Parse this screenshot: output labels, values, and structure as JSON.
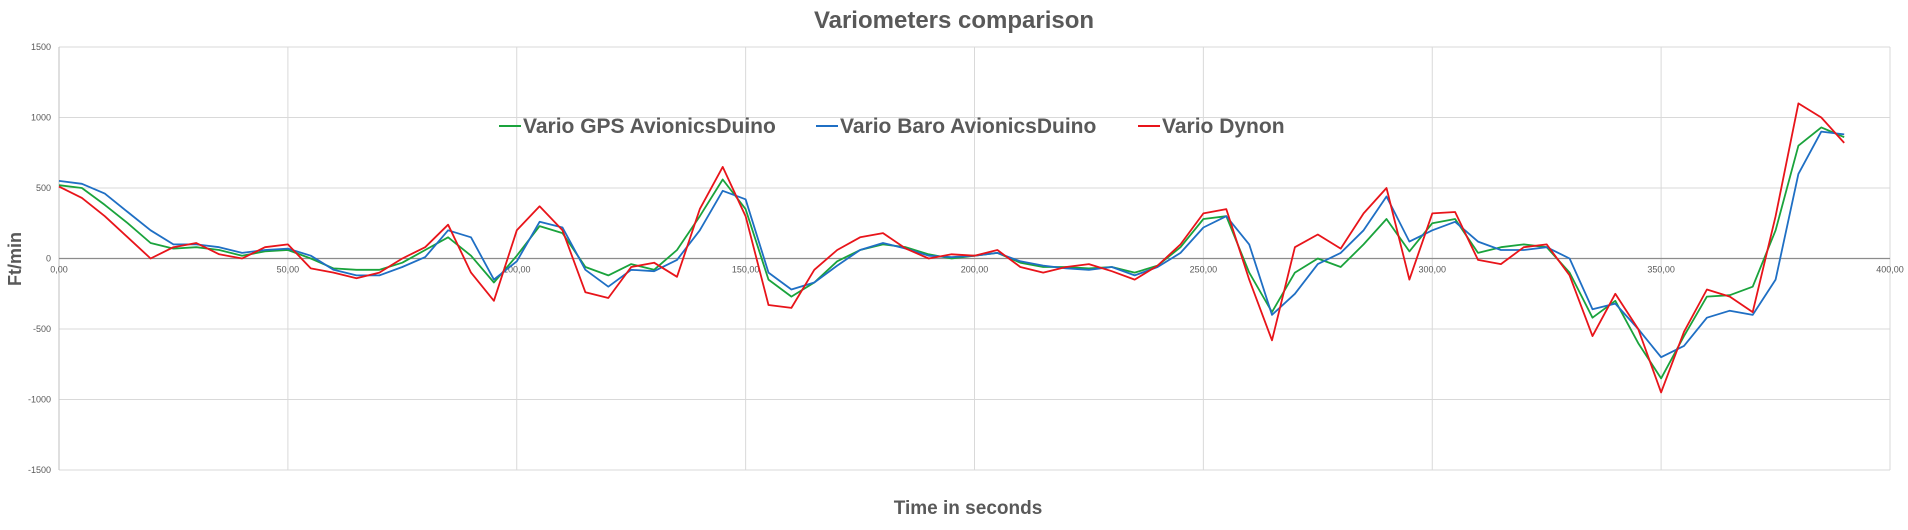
{
  "chart_data": {
    "type": "line",
    "title": "Variometers comparison",
    "xlabel": "Time in seconds",
    "ylabel": "Ft/min",
    "xlim": [
      0,
      400
    ],
    "ylim": [
      -1500,
      1500
    ],
    "x_ticks": [
      0,
      50,
      100,
      150,
      200,
      250,
      300,
      350,
      400
    ],
    "x_tick_labels": [
      "0,00",
      "50,00",
      "100,00",
      "150,00",
      "200,00",
      "250,00",
      "300,00",
      "350,00",
      "400,00"
    ],
    "y_ticks": [
      1500,
      1000,
      500,
      0,
      -500,
      -1000,
      -1500
    ],
    "y_tick_labels": [
      "1500",
      "1000",
      "500",
      "0",
      "-500",
      "-1000",
      "-1500"
    ],
    "grid": true,
    "legend_position": "top-center",
    "series": [
      {
        "name": "Vario GPS AvionicsDuino",
        "color": "#1aa33c",
        "points": [
          [
            0,
            520
          ],
          [
            5,
            500
          ],
          [
            10,
            380
          ],
          [
            15,
            250
          ],
          [
            20,
            110
          ],
          [
            25,
            70
          ],
          [
            30,
            80
          ],
          [
            35,
            60
          ],
          [
            40,
            20
          ],
          [
            45,
            50
          ],
          [
            50,
            60
          ],
          [
            55,
            0
          ],
          [
            60,
            -70
          ],
          [
            65,
            -80
          ],
          [
            70,
            -80
          ],
          [
            75,
            -30
          ],
          [
            80,
            60
          ],
          [
            85,
            150
          ],
          [
            90,
            20
          ],
          [
            95,
            -170
          ],
          [
            100,
            20
          ],
          [
            105,
            230
          ],
          [
            110,
            180
          ],
          [
            115,
            -60
          ],
          [
            120,
            -120
          ],
          [
            125,
            -40
          ],
          [
            130,
            -80
          ],
          [
            135,
            60
          ],
          [
            140,
            300
          ],
          [
            145,
            560
          ],
          [
            150,
            350
          ],
          [
            155,
            -150
          ],
          [
            160,
            -270
          ],
          [
            165,
            -170
          ],
          [
            170,
            -20
          ],
          [
            175,
            60
          ],
          [
            180,
            100
          ],
          [
            185,
            80
          ],
          [
            190,
            30
          ],
          [
            195,
            0
          ],
          [
            200,
            20
          ],
          [
            205,
            40
          ],
          [
            210,
            -30
          ],
          [
            215,
            -60
          ],
          [
            220,
            -60
          ],
          [
            225,
            -70
          ],
          [
            230,
            -60
          ],
          [
            235,
            -100
          ],
          [
            240,
            -50
          ],
          [
            245,
            80
          ],
          [
            250,
            280
          ],
          [
            255,
            300
          ],
          [
            260,
            -100
          ],
          [
            265,
            -380
          ],
          [
            270,
            -100
          ],
          [
            275,
            0
          ],
          [
            280,
            -60
          ],
          [
            285,
            100
          ],
          [
            290,
            280
          ],
          [
            295,
            50
          ],
          [
            300,
            250
          ],
          [
            305,
            280
          ],
          [
            310,
            40
          ],
          [
            315,
            80
          ],
          [
            320,
            100
          ],
          [
            325,
            80
          ],
          [
            330,
            -100
          ],
          [
            335,
            -420
          ],
          [
            340,
            -300
          ],
          [
            345,
            -600
          ],
          [
            350,
            -850
          ],
          [
            355,
            -550
          ],
          [
            360,
            -270
          ],
          [
            365,
            -260
          ],
          [
            370,
            -200
          ],
          [
            375,
            200
          ],
          [
            380,
            800
          ],
          [
            385,
            930
          ],
          [
            390,
            860
          ]
        ]
      },
      {
        "name": "Vario Baro AvionicsDuino",
        "color": "#1f6fc4",
        "points": [
          [
            0,
            550
          ],
          [
            5,
            530
          ],
          [
            10,
            460
          ],
          [
            15,
            330
          ],
          [
            20,
            200
          ],
          [
            25,
            100
          ],
          [
            30,
            100
          ],
          [
            35,
            80
          ],
          [
            40,
            40
          ],
          [
            45,
            60
          ],
          [
            50,
            70
          ],
          [
            55,
            20
          ],
          [
            60,
            -80
          ],
          [
            65,
            -120
          ],
          [
            70,
            -120
          ],
          [
            75,
            -60
          ],
          [
            80,
            10
          ],
          [
            85,
            200
          ],
          [
            90,
            150
          ],
          [
            95,
            -150
          ],
          [
            100,
            -20
          ],
          [
            105,
            260
          ],
          [
            110,
            220
          ],
          [
            115,
            -80
          ],
          [
            120,
            -200
          ],
          [
            125,
            -80
          ],
          [
            130,
            -90
          ],
          [
            135,
            -10
          ],
          [
            140,
            200
          ],
          [
            145,
            480
          ],
          [
            150,
            420
          ],
          [
            155,
            -100
          ],
          [
            160,
            -220
          ],
          [
            165,
            -170
          ],
          [
            170,
            -50
          ],
          [
            175,
            60
          ],
          [
            180,
            110
          ],
          [
            185,
            70
          ],
          [
            190,
            20
          ],
          [
            195,
            10
          ],
          [
            200,
            20
          ],
          [
            205,
            40
          ],
          [
            210,
            -20
          ],
          [
            215,
            -50
          ],
          [
            220,
            -70
          ],
          [
            225,
            -80
          ],
          [
            230,
            -60
          ],
          [
            235,
            -120
          ],
          [
            240,
            -60
          ],
          [
            245,
            40
          ],
          [
            250,
            220
          ],
          [
            255,
            300
          ],
          [
            260,
            100
          ],
          [
            265,
            -400
          ],
          [
            270,
            -250
          ],
          [
            275,
            -40
          ],
          [
            280,
            40
          ],
          [
            285,
            200
          ],
          [
            290,
            440
          ],
          [
            295,
            120
          ],
          [
            300,
            200
          ],
          [
            305,
            260
          ],
          [
            310,
            120
          ],
          [
            315,
            60
          ],
          [
            320,
            60
          ],
          [
            325,
            80
          ],
          [
            330,
            0
          ],
          [
            335,
            -360
          ],
          [
            340,
            -320
          ],
          [
            345,
            -500
          ],
          [
            350,
            -700
          ],
          [
            355,
            -620
          ],
          [
            360,
            -420
          ],
          [
            365,
            -370
          ],
          [
            370,
            -400
          ],
          [
            375,
            -150
          ],
          [
            380,
            600
          ],
          [
            385,
            900
          ],
          [
            390,
            880
          ]
        ]
      },
      {
        "name": "Vario Dynon",
        "color": "#e8141a",
        "points": [
          [
            0,
            510
          ],
          [
            5,
            430
          ],
          [
            10,
            300
          ],
          [
            15,
            150
          ],
          [
            20,
            0
          ],
          [
            25,
            80
          ],
          [
            30,
            110
          ],
          [
            35,
            30
          ],
          [
            40,
            0
          ],
          [
            45,
            80
          ],
          [
            50,
            100
          ],
          [
            55,
            -70
          ],
          [
            60,
            -100
          ],
          [
            65,
            -140
          ],
          [
            70,
            -100
          ],
          [
            75,
            0
          ],
          [
            80,
            80
          ],
          [
            85,
            240
          ],
          [
            90,
            -100
          ],
          [
            95,
            -300
          ],
          [
            100,
            200
          ],
          [
            105,
            370
          ],
          [
            110,
            200
          ],
          [
            115,
            -240
          ],
          [
            120,
            -280
          ],
          [
            125,
            -60
          ],
          [
            130,
            -30
          ],
          [
            135,
            -130
          ],
          [
            140,
            350
          ],
          [
            145,
            650
          ],
          [
            150,
            300
          ],
          [
            155,
            -330
          ],
          [
            160,
            -350
          ],
          [
            165,
            -80
          ],
          [
            170,
            60
          ],
          [
            175,
            150
          ],
          [
            180,
            180
          ],
          [
            185,
            70
          ],
          [
            190,
            0
          ],
          [
            195,
            30
          ],
          [
            200,
            20
          ],
          [
            205,
            60
          ],
          [
            210,
            -60
          ],
          [
            215,
            -100
          ],
          [
            220,
            -60
          ],
          [
            225,
            -40
          ],
          [
            230,
            -90
          ],
          [
            235,
            -150
          ],
          [
            240,
            -50
          ],
          [
            245,
            100
          ],
          [
            250,
            320
          ],
          [
            255,
            350
          ],
          [
            260,
            -150
          ],
          [
            265,
            -580
          ],
          [
            270,
            80
          ],
          [
            275,
            170
          ],
          [
            280,
            70
          ],
          [
            285,
            320
          ],
          [
            290,
            500
          ],
          [
            295,
            -150
          ],
          [
            300,
            320
          ],
          [
            305,
            330
          ],
          [
            310,
            -10
          ],
          [
            315,
            -40
          ],
          [
            320,
            80
          ],
          [
            325,
            100
          ],
          [
            330,
            -120
          ],
          [
            335,
            -550
          ],
          [
            340,
            -250
          ],
          [
            345,
            -500
          ],
          [
            350,
            -950
          ],
          [
            355,
            -520
          ],
          [
            360,
            -220
          ],
          [
            365,
            -270
          ],
          [
            370,
            -380
          ],
          [
            375,
            300
          ],
          [
            380,
            1100
          ],
          [
            385,
            1000
          ],
          [
            390,
            820
          ]
        ]
      }
    ]
  }
}
